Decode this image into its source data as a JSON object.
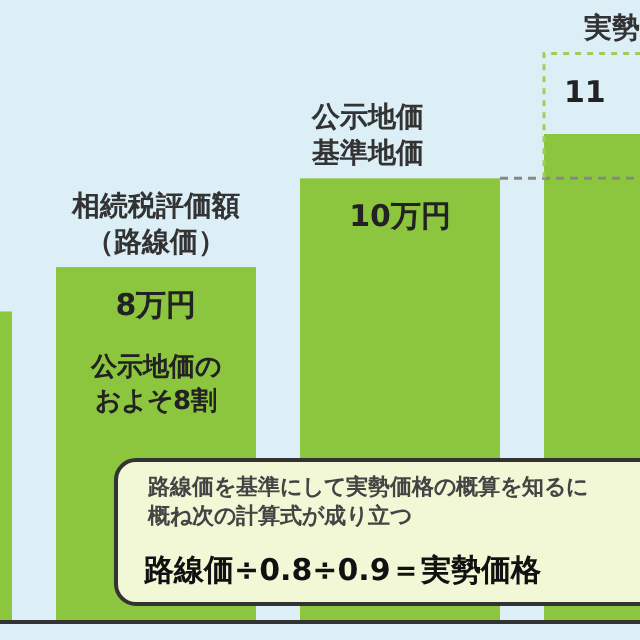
{
  "chart_data": {
    "type": "bar",
    "categories": [
      null,
      "相続税評価額（路線価）",
      "公示地価基準地価",
      null
    ],
    "values": [
      7,
      8,
      10,
      11
    ],
    "color": "#8cc63f",
    "value_labels": [
      null,
      "8万円",
      "10万円",
      "11"
    ],
    "ref_lines": [
      {
        "axis": "y",
        "value": 10,
        "line_style": "dashed",
        "color": "#888888"
      }
    ],
    "annotations": [
      "公示地価のおよそ8割",
      "路線価を基準にして実勢価格の概算を知るに概ね次の計算式が成り立つ",
      "路線価÷0.8÷0.9＝実勢価格",
      "実勢"
    ]
  }
}
